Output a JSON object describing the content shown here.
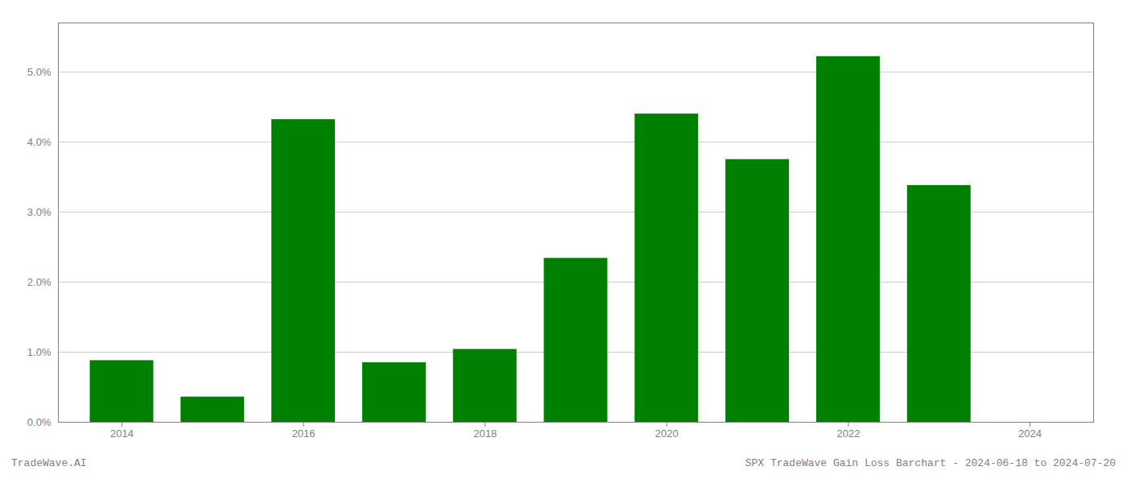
{
  "chart_data": {
    "type": "bar",
    "x": [
      2014,
      2015,
      2016,
      2017,
      2018,
      2019,
      2020,
      2021,
      2022,
      2023,
      2024
    ],
    "values": [
      0.0088,
      0.0036,
      0.0432,
      0.0085,
      0.0104,
      0.0234,
      0.044,
      0.0375,
      0.0522,
      0.0338,
      0.0
    ],
    "color": "#008000",
    "xlim": [
      2013.3,
      2024.7
    ],
    "xticks": [
      2014,
      2016,
      2018,
      2020,
      2022,
      2024
    ],
    "ylim": [
      0,
      0.057
    ],
    "yticks": [
      {
        "value": 0.0,
        "label": "0.0%"
      },
      {
        "value": 0.01,
        "label": "1.0%"
      },
      {
        "value": 0.02,
        "label": "2.0%"
      },
      {
        "value": 0.03,
        "label": "3.0%"
      },
      {
        "value": 0.04,
        "label": "4.0%"
      },
      {
        "value": 0.05,
        "label": "5.0%"
      }
    ],
    "grid": true,
    "annotations": [
      "TradeWave.AI",
      "SPX TradeWave Gain Loss Barchart - 2024-06-18 to 2024-07-20"
    ]
  }
}
